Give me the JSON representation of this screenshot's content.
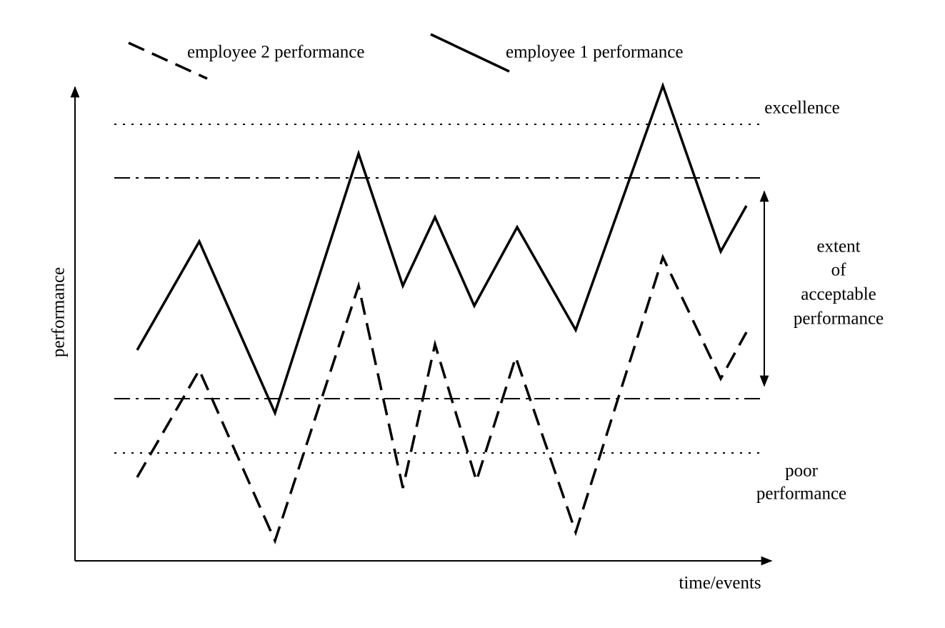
{
  "legend": [
    {
      "label": "employee 2 performance"
    },
    {
      "label": "employee 1 performance"
    }
  ],
  "axes": {
    "y_label": "performance",
    "x_label": "time/events"
  },
  "annotations": {
    "excellence": "excellence",
    "acceptable": [
      "extent",
      "of",
      "acceptable",
      "performance"
    ],
    "poor": [
      "poor",
      "performance"
    ]
  }
}
